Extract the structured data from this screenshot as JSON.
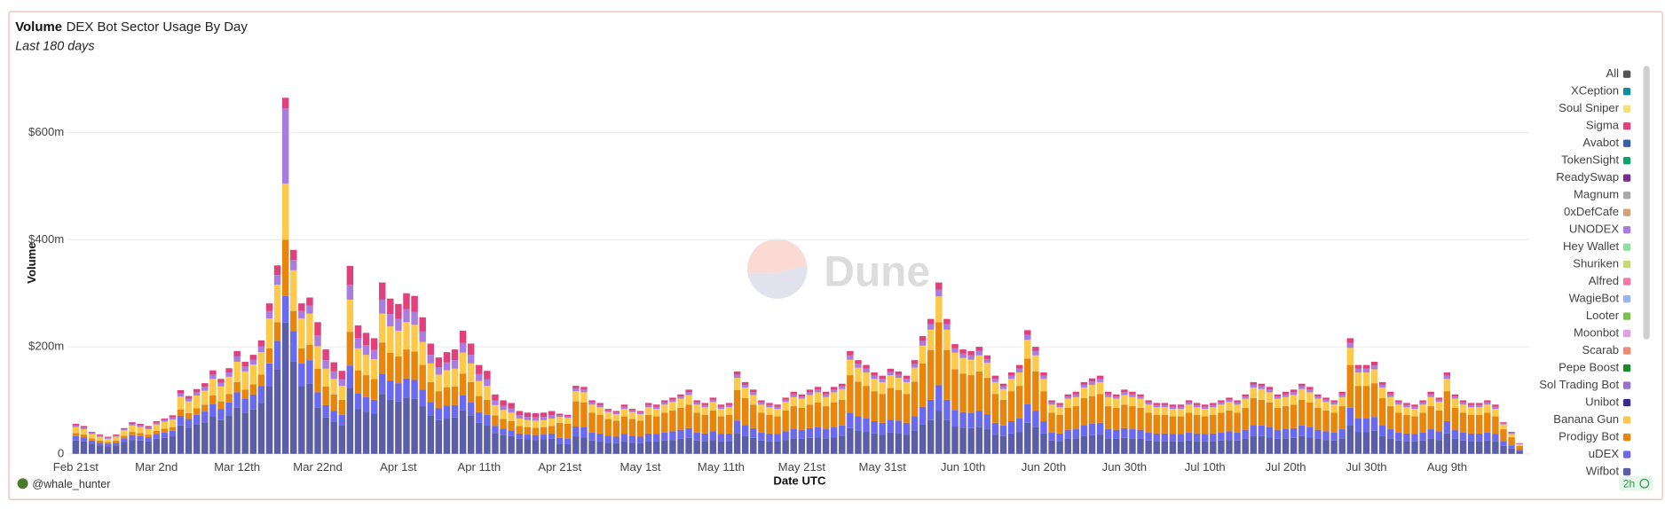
{
  "chart_data": {
    "type": "stacked-bar",
    "title": "Volume",
    "subtitle": "DEX Bot Sector Usage By Day",
    "caption": "Last 180 days",
    "ylabel": "Volume",
    "xlabel": "Date UTC",
    "author": "@whale_hunter",
    "watermark": "Dune",
    "refresh": "2h",
    "ylim": [
      0,
      713
    ],
    "yticks": [
      0,
      {
        "value": 200,
        "label": "$200m"
      },
      {
        "value": 400,
        "label": "$400m"
      },
      {
        "value": 600,
        "label": "$600m"
      }
    ],
    "grid": true,
    "legend": "right",
    "categories": [
      "Feb 21st",
      null,
      null,
      null,
      null,
      null,
      null,
      null,
      null,
      null,
      "Mar 2nd",
      null,
      null,
      null,
      null,
      null,
      null,
      null,
      null,
      null,
      "Mar 12th",
      null,
      null,
      null,
      null,
      null,
      null,
      null,
      null,
      null,
      "Mar 22nd",
      null,
      null,
      null,
      null,
      null,
      null,
      null,
      null,
      null,
      "Apr 1st",
      null,
      null,
      null,
      null,
      null,
      null,
      null,
      null,
      null,
      "Apr 11th",
      null,
      null,
      null,
      null,
      null,
      null,
      null,
      null,
      null,
      "Apr 21st",
      null,
      null,
      null,
      null,
      null,
      null,
      null,
      null,
      null,
      "May 1st",
      null,
      null,
      null,
      null,
      null,
      null,
      null,
      null,
      null,
      "May 11th",
      null,
      null,
      null,
      null,
      null,
      null,
      null,
      null,
      null,
      "May 21st",
      null,
      null,
      null,
      null,
      null,
      null,
      null,
      null,
      null,
      "May 31st",
      null,
      null,
      null,
      null,
      null,
      null,
      null,
      null,
      null,
      "Jun 10th",
      null,
      null,
      null,
      null,
      null,
      null,
      null,
      null,
      null,
      "Jun 20th",
      null,
      null,
      null,
      null,
      null,
      null,
      null,
      null,
      null,
      "Jun 30th",
      null,
      null,
      null,
      null,
      null,
      null,
      null,
      null,
      null,
      "Jul 10th",
      null,
      null,
      null,
      null,
      null,
      null,
      null,
      null,
      null,
      "Jul 20th",
      null,
      null,
      null,
      null,
      null,
      null,
      null,
      null,
      null,
      "Jul 30th",
      null,
      null,
      null,
      null,
      null,
      null,
      null,
      null,
      null,
      "Aug 9th",
      null,
      null,
      null,
      null,
      null,
      null,
      null,
      null,
      null
    ],
    "series": [
      {
        "name": "All",
        "color": "#555555"
      },
      {
        "name": "XCeption",
        "color": "#0e8ea0"
      },
      {
        "name": "Soul Sniper",
        "color": "#f5e07a"
      },
      {
        "name": "Sigma",
        "color": "#e0407b",
        "values": [
          3,
          3,
          2,
          2,
          2,
          2,
          2,
          3,
          3,
          3,
          3,
          3,
          4,
          6,
          5,
          6,
          7,
          8,
          7,
          8,
          10,
          9,
          9,
          11,
          14,
          18,
          20,
          19,
          14,
          15,
          25,
          20,
          17,
          16,
          35,
          24,
          23,
          22,
          32,
          29,
          28,
          30,
          30,
          26,
          21,
          18,
          19,
          20,
          23,
          21,
          17,
          16,
          11,
          10,
          10,
          8,
          8,
          8,
          8,
          8,
          3,
          3,
          5,
          5,
          4,
          4,
          3,
          3,
          4,
          3,
          3,
          4,
          4,
          4,
          4,
          4,
          5,
          4,
          4,
          4,
          4,
          4,
          6,
          5,
          5,
          4,
          4,
          4,
          4,
          5,
          4,
          5,
          5,
          5,
          5,
          5,
          8,
          7,
          7,
          6,
          6,
          6,
          6,
          6,
          7,
          9,
          10,
          13,
          10,
          8,
          8,
          8,
          8,
          7,
          6,
          5,
          6,
          7,
          9,
          8,
          6,
          4,
          4,
          4,
          5,
          5,
          6,
          6,
          5,
          4,
          5,
          5,
          4,
          4,
          4,
          4,
          4,
          4,
          4,
          4,
          4,
          4,
          4,
          4,
          4,
          4,
          5,
          5,
          5,
          4,
          5,
          5,
          5,
          5,
          4,
          4,
          4,
          5,
          9,
          7,
          7,
          7,
          5,
          5,
          4,
          4,
          4,
          4,
          5,
          4,
          6,
          4,
          4,
          4,
          4,
          4,
          4,
          2,
          2,
          1
        ]
      },
      {
        "name": "Avabot",
        "color": "#3b5ea8"
      },
      {
        "name": "TokenSight",
        "color": "#12a06a"
      },
      {
        "name": "ReadySwap",
        "color": "#7a2e8a"
      },
      {
        "name": "Magnum",
        "color": "#aaaaaa"
      },
      {
        "name": "0xDefCafe",
        "color": "#d4a373"
      },
      {
        "name": "UNODEX",
        "color": "#a97de0",
        "values": [
          3,
          3,
          2,
          2,
          2,
          2,
          2,
          3,
          3,
          3,
          3,
          3,
          4,
          6,
          5,
          6,
          7,
          8,
          7,
          8,
          10,
          9,
          9,
          11,
          14,
          18,
          140,
          19,
          14,
          15,
          20,
          16,
          14,
          12,
          28,
          19,
          18,
          17,
          26,
          23,
          22,
          24,
          24,
          20,
          16,
          14,
          15,
          16,
          18,
          16,
          13,
          12,
          9,
          8,
          8,
          6,
          6,
          6,
          6,
          6,
          3,
          3,
          5,
          5,
          4,
          4,
          3,
          3,
          4,
          3,
          3,
          4,
          4,
          4,
          4,
          4,
          5,
          4,
          4,
          4,
          4,
          4,
          6,
          5,
          5,
          4,
          4,
          4,
          4,
          5,
          4,
          5,
          5,
          5,
          5,
          5,
          8,
          7,
          7,
          6,
          6,
          6,
          6,
          6,
          7,
          9,
          10,
          13,
          10,
          8,
          8,
          8,
          8,
          7,
          6,
          5,
          6,
          7,
          9,
          8,
          6,
          4,
          4,
          4,
          5,
          5,
          6,
          6,
          5,
          4,
          5,
          5,
          4,
          4,
          4,
          4,
          4,
          4,
          4,
          4,
          4,
          4,
          4,
          4,
          4,
          4,
          5,
          5,
          5,
          4,
          5,
          5,
          5,
          5,
          4,
          4,
          4,
          5,
          9,
          7,
          7,
          7,
          5,
          5,
          4,
          4,
          4,
          4,
          5,
          4,
          6,
          4,
          4,
          4,
          4,
          4,
          4,
          2,
          2,
          1
        ]
      },
      {
        "name": "Hey Wallet",
        "color": "#8ee0a0"
      },
      {
        "name": "Shuriken",
        "color": "#c8d870"
      },
      {
        "name": "Alfred",
        "color": "#f07aa0"
      },
      {
        "name": "WagieBot",
        "color": "#9ab4f0"
      },
      {
        "name": "Looter",
        "color": "#7ac050"
      },
      {
        "name": "Moonbot",
        "color": "#e0a0e8"
      },
      {
        "name": "Scarab",
        "color": "#f08a70"
      },
      {
        "name": "Pepe Boost",
        "color": "#1a8a2a"
      },
      {
        "name": "Sol Trading Bot",
        "color": "#9a70d0"
      },
      {
        "name": "Unibot",
        "color": "#3a2a8a"
      },
      {
        "name": "Banana Gun",
        "color": "#fcc94a",
        "values": [
          11,
          10,
          8,
          7,
          6,
          7,
          10,
          12,
          11,
          10,
          12,
          13,
          14,
          24,
          22,
          24,
          26,
          31,
          28,
          32,
          38,
          34,
          37,
          42,
          56,
          70,
          105,
          76,
          56,
          58,
          42,
          33,
          29,
          26,
          60,
          41,
          38,
          37,
          54,
          49,
          48,
          51,
          50,
          43,
          35,
          31,
          32,
          33,
          39,
          35,
          28,
          26,
          19,
          17,
          16,
          14,
          13,
          13,
          13,
          14,
          11,
          11,
          19,
          19,
          15,
          14,
          13,
          12,
          14,
          13,
          12,
          14,
          14,
          15,
          16,
          17,
          18,
          15,
          14,
          16,
          14,
          14,
          23,
          20,
          18,
          15,
          14,
          14,
          16,
          17,
          17,
          18,
          19,
          17,
          19,
          20,
          29,
          26,
          25,
          23,
          22,
          24,
          23,
          22,
          26,
          33,
          38,
          48,
          38,
          31,
          29,
          29,
          30,
          28,
          22,
          20,
          23,
          25,
          35,
          30,
          23,
          15,
          14,
          17,
          17,
          20,
          21,
          22,
          17,
          17,
          18,
          17,
          17,
          15,
          14,
          14,
          14,
          14,
          15,
          14,
          14,
          14,
          15,
          16,
          15,
          17,
          20,
          20,
          19,
          17,
          17,
          18,
          20,
          19,
          17,
          16,
          15,
          17,
          32,
          25,
          25,
          26,
          20,
          17,
          15,
          14,
          14,
          15,
          17,
          16,
          23,
          17,
          15,
          14,
          14,
          15,
          14,
          9,
          6,
          3
        ]
      },
      {
        "name": "Prodigy Bot",
        "color": "#e8850c",
        "values": [
          6,
          5,
          4,
          4,
          3,
          4,
          5,
          6,
          6,
          5,
          6,
          7,
          7,
          12,
          11,
          12,
          13,
          16,
          14,
          16,
          19,
          17,
          19,
          21,
          28,
          35,
          105,
          38,
          28,
          29,
          44,
          35,
          31,
          28,
          63,
          43,
          41,
          39,
          58,
          52,
          50,
          54,
          53,
          46,
          37,
          32,
          34,
          35,
          41,
          37,
          30,
          28,
          20,
          18,
          17,
          14,
          14,
          14,
          14,
          14,
          28,
          27,
          47,
          46,
          37,
          35,
          31,
          30,
          33,
          31,
          30,
          35,
          33,
          37,
          39,
          41,
          44,
          37,
          35,
          39,
          33,
          35,
          57,
          50,
          44,
          37,
          35,
          33,
          39,
          43,
          41,
          44,
          46,
          43,
          46,
          48,
          70,
          65,
          61,
          56,
          54,
          59,
          57,
          54,
          65,
          81,
          93,
          118,
          93,
          76,
          72,
          70,
          74,
          68,
          54,
          48,
          56,
          61,
          85,
          74,
          56,
          37,
          35,
          41,
          43,
          50,
          52,
          54,
          43,
          41,
          44,
          43,
          41,
          37,
          35,
          35,
          33,
          33,
          37,
          35,
          33,
          35,
          37,
          39,
          37,
          41,
          50,
          48,
          46,
          41,
          43,
          44,
          48,
          46,
          41,
          39,
          37,
          43,
          80,
          61,
          61,
          63,
          50,
          43,
          37,
          35,
          33,
          37,
          43,
          39,
          56,
          41,
          37,
          35,
          35,
          37,
          33,
          22,
          15,
          7
        ]
      },
      {
        "name": "uDEX",
        "color": "#6a6af0",
        "values": [
          8,
          8,
          6,
          5,
          5,
          5,
          7,
          9,
          8,
          8,
          9,
          10,
          11,
          18,
          16,
          18,
          20,
          23,
          21,
          24,
          29,
          26,
          28,
          32,
          42,
          53,
          50,
          57,
          42,
          44,
          29,
          23,
          20,
          19,
          42,
          29,
          27,
          26,
          38,
          35,
          34,
          36,
          35,
          31,
          25,
          22,
          23,
          23,
          28,
          25,
          20,
          19,
          13,
          12,
          11,
          10,
          9,
          9,
          9,
          10,
          11,
          11,
          19,
          19,
          15,
          14,
          13,
          12,
          14,
          13,
          12,
          14,
          14,
          15,
          16,
          17,
          18,
          15,
          14,
          16,
          14,
          14,
          23,
          20,
          18,
          15,
          14,
          14,
          16,
          17,
          17,
          18,
          19,
          17,
          19,
          20,
          29,
          26,
          25,
          23,
          22,
          24,
          23,
          22,
          26,
          33,
          38,
          48,
          38,
          31,
          29,
          29,
          30,
          28,
          22,
          20,
          23,
          25,
          35,
          30,
          23,
          15,
          14,
          17,
          17,
          20,
          21,
          22,
          17,
          17,
          18,
          17,
          17,
          15,
          14,
          14,
          14,
          14,
          15,
          14,
          14,
          14,
          15,
          16,
          15,
          17,
          20,
          20,
          19,
          17,
          17,
          18,
          20,
          19,
          17,
          16,
          15,
          17,
          32,
          25,
          25,
          26,
          20,
          17,
          15,
          14,
          14,
          15,
          17,
          16,
          23,
          17,
          15,
          14,
          14,
          15,
          14,
          9,
          6,
          3
        ]
      },
      {
        "name": "Wifbot",
        "color": "#5b5ea6",
        "values": [
          25,
          23,
          19,
          16,
          14,
          16,
          22,
          26,
          25,
          23,
          28,
          30,
          32,
          53,
          49,
          55,
          59,
          70,
          63,
          72,
          86,
          77,
          83,
          95,
          127,
          158,
          245,
          172,
          127,
          131,
          86,
          68,
          60,
          54,
          123,
          84,
          79,
          75,
          112,
          102,
          98,
          105,
          103,
          89,
          72,
          63,
          67,
          68,
          81,
          72,
          58,
          54,
          39,
          35,
          33,
          28,
          27,
          26,
          27,
          28,
          19,
          18,
          32,
          31,
          25,
          24,
          21,
          20,
          23,
          21,
          20,
          24,
          23,
          25,
          26,
          28,
          30,
          25,
          24,
          26,
          23,
          24,
          39,
          34,
          30,
          25,
          24,
          23,
          26,
          29,
          28,
          30,
          31,
          29,
          31,
          33,
          48,
          44,
          41,
          38,
          36,
          40,
          39,
          36,
          44,
          55,
          63,
          80,
          63,
          51,
          49,
          48,
          50,
          46,
          36,
          33,
          38,
          41,
          58,
          50,
          38,
          25,
          24,
          28,
          29,
          34,
          35,
          36,
          29,
          28,
          30,
          29,
          28,
          25,
          24,
          24,
          23,
          23,
          25,
          24,
          23,
          24,
          25,
          26,
          25,
          28,
          34,
          33,
          31,
          28,
          29,
          30,
          33,
          31,
          28,
          26,
          25,
          29,
          54,
          41,
          41,
          43,
          34,
          29,
          25,
          24,
          23,
          25,
          29,
          26,
          38,
          28,
          25,
          24,
          24,
          25,
          23,
          15,
          10,
          5
        ]
      }
    ]
  }
}
